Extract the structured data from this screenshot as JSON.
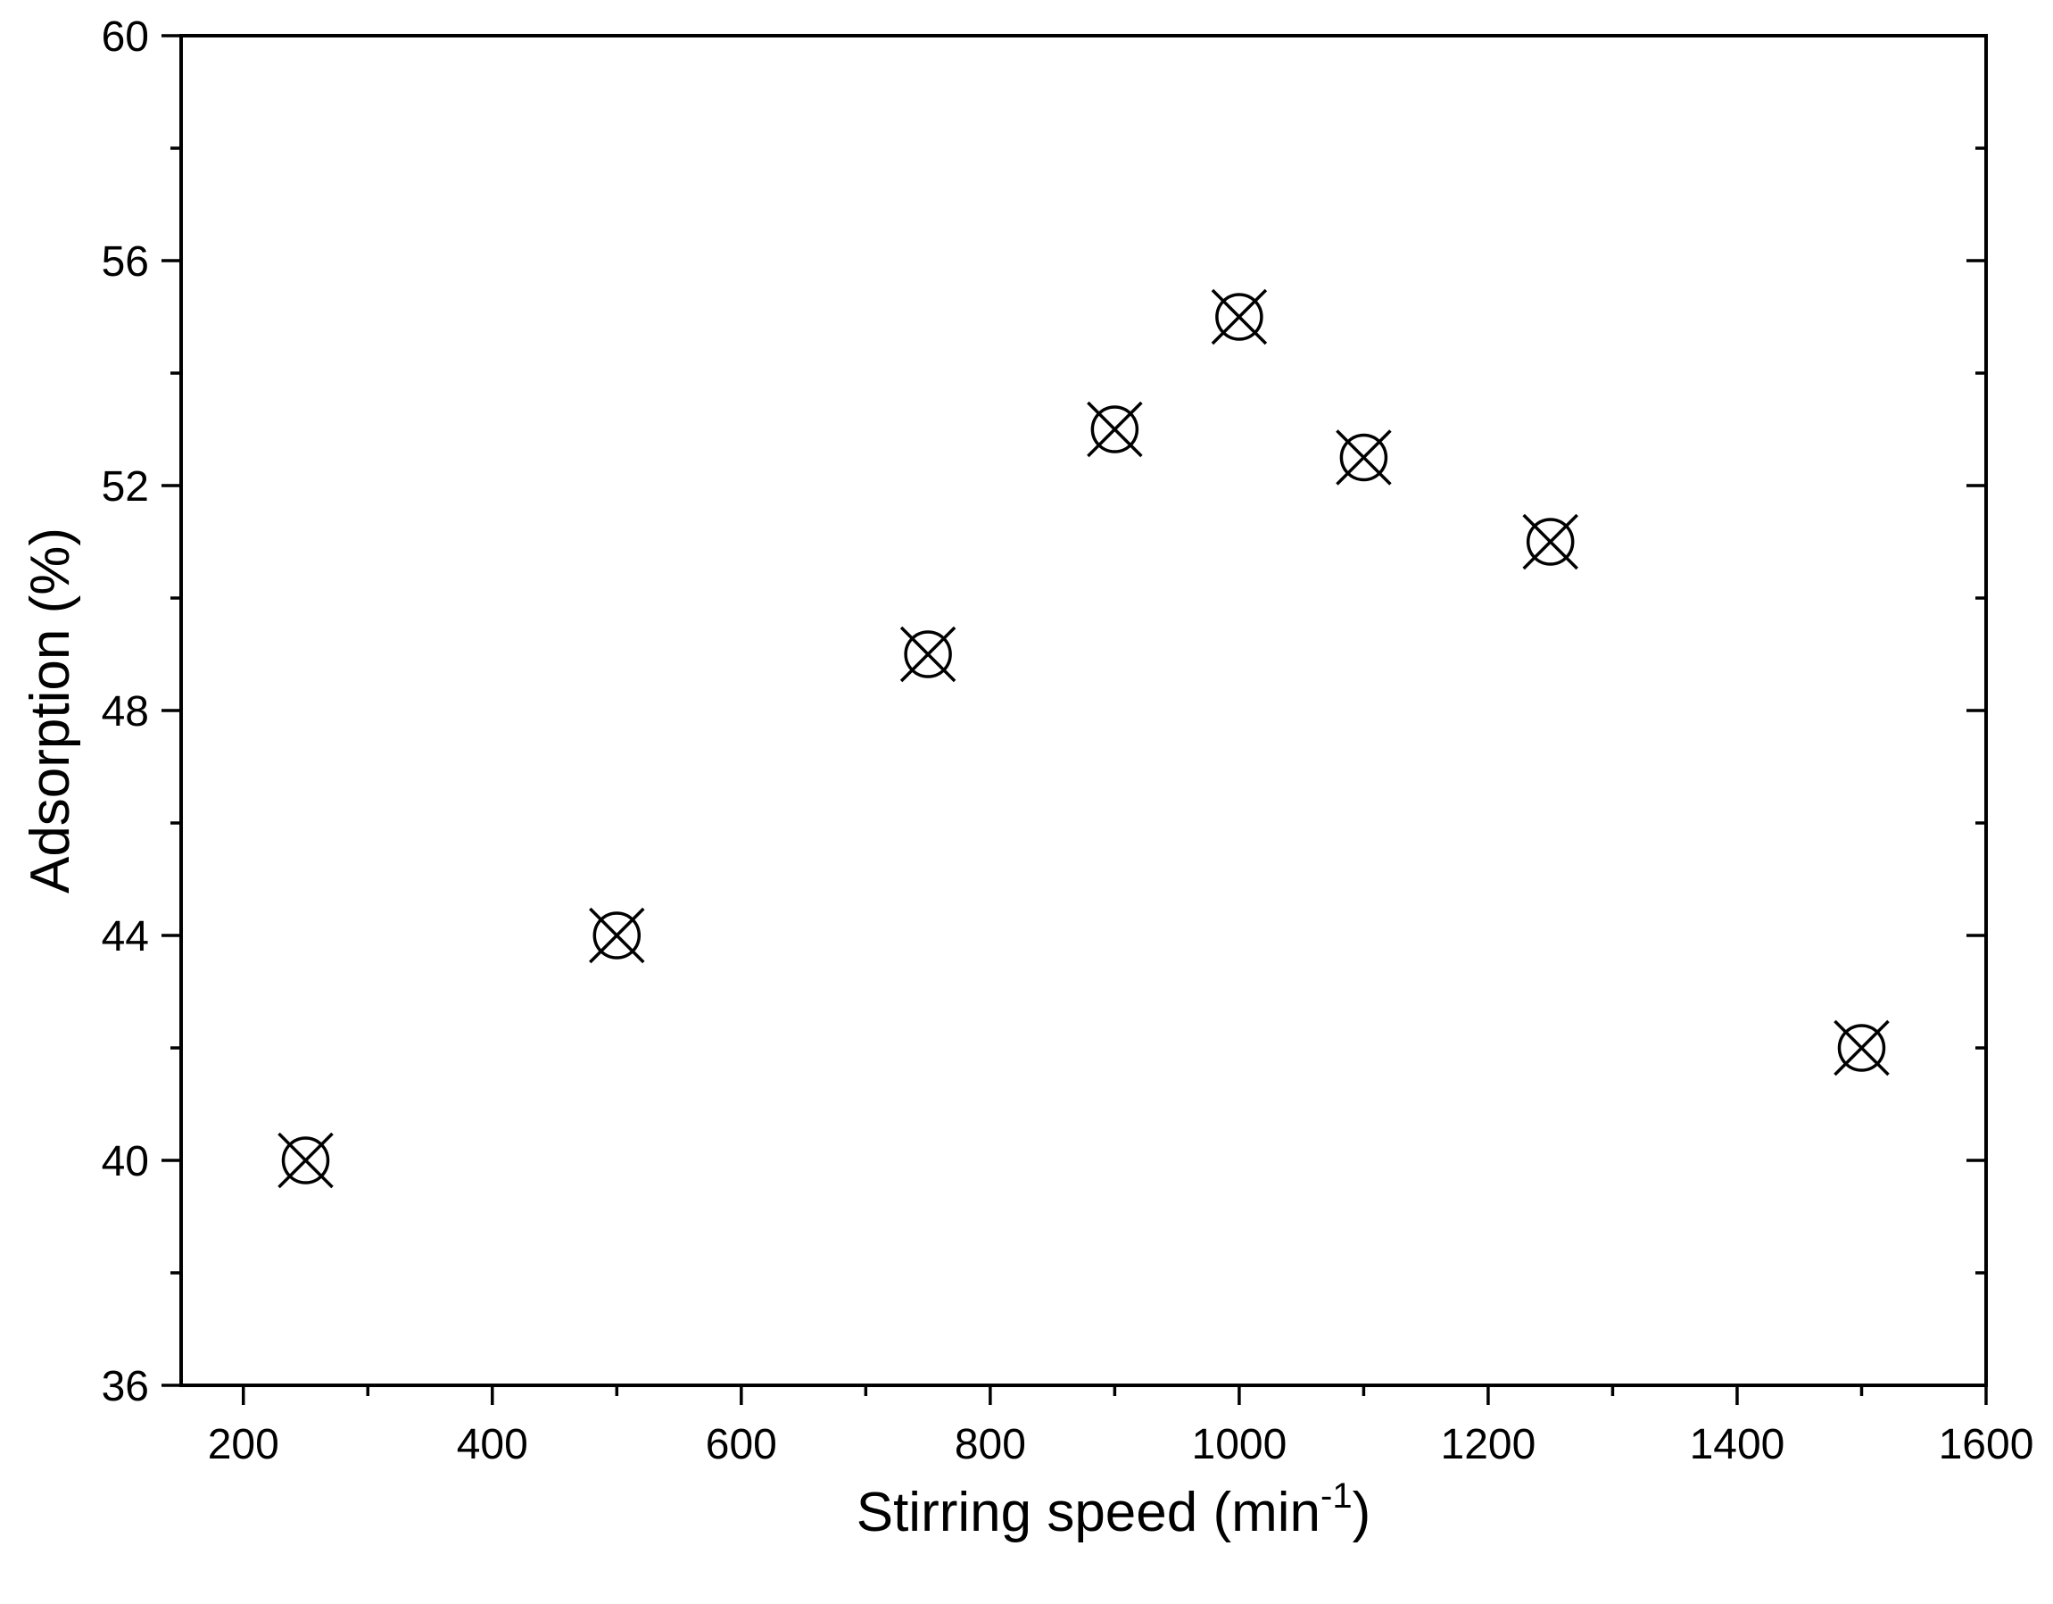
{
  "chart_data": {
    "type": "scatter",
    "title": "",
    "xlabel": "Stirring speed (min",
    "xlabel_superscript": "-1",
    "xlabel_suffix": ")",
    "ylabel": "Adsorption (%)",
    "xlim": [
      150,
      1600
    ],
    "ylim": [
      36,
      60
    ],
    "x_ticks": [
      200,
      400,
      600,
      800,
      1000,
      1200,
      1400,
      1600
    ],
    "y_ticks": [
      36,
      40,
      44,
      48,
      52,
      56,
      60
    ],
    "x_minor_step": 100,
    "y_minor_step": 2,
    "grid": false,
    "marker": "circle-x",
    "marker_color": "#000000",
    "series": [
      {
        "x": [
          250,
          500,
          750,
          900,
          1000,
          1100,
          1250,
          1500
        ],
        "values": [
          40,
          44,
          49,
          53,
          55,
          52.5,
          51,
          42
        ]
      }
    ]
  }
}
